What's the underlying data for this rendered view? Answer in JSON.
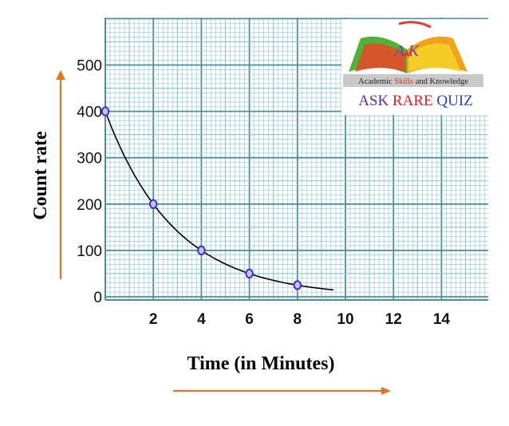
{
  "chart_data": {
    "type": "line",
    "title": "",
    "xlabel": "Time (in Minutes)",
    "ylabel": "Count rate",
    "xlim": [
      0,
      16
    ],
    "ylim": [
      0,
      520
    ],
    "x_ticks": [
      "2",
      "4",
      "6",
      "8",
      "10",
      "12",
      "14"
    ],
    "y_ticks": [
      "0",
      "100",
      "200",
      "300",
      "400",
      "500"
    ],
    "grid": true,
    "series": [
      {
        "x": [
          0,
          2,
          4,
          6,
          8
        ],
        "values": [
          400,
          200,
          100,
          50,
          25
        ],
        "curve_end_x": 9.5,
        "marker_color": "#3b2fd0",
        "line_color": "#000000"
      }
    ]
  },
  "logo": {
    "letters": "A K",
    "subtitle_plain_1": "Academic ",
    "subtitle_highlight": "Skills",
    "subtitle_plain_2": " and Knowledge",
    "quiz_word_1": "ASK",
    "quiz_word_2": "RARE",
    "quiz_word_3": "QUIZ"
  },
  "colors": {
    "grid_minor": "#8cc4cc",
    "grid_major": "#4a8f99",
    "arrow": "#e8741c",
    "quiz_1": "#5a2aa8",
    "quiz_2": "#d81f2a",
    "quiz_3": "#2a3fcf"
  }
}
